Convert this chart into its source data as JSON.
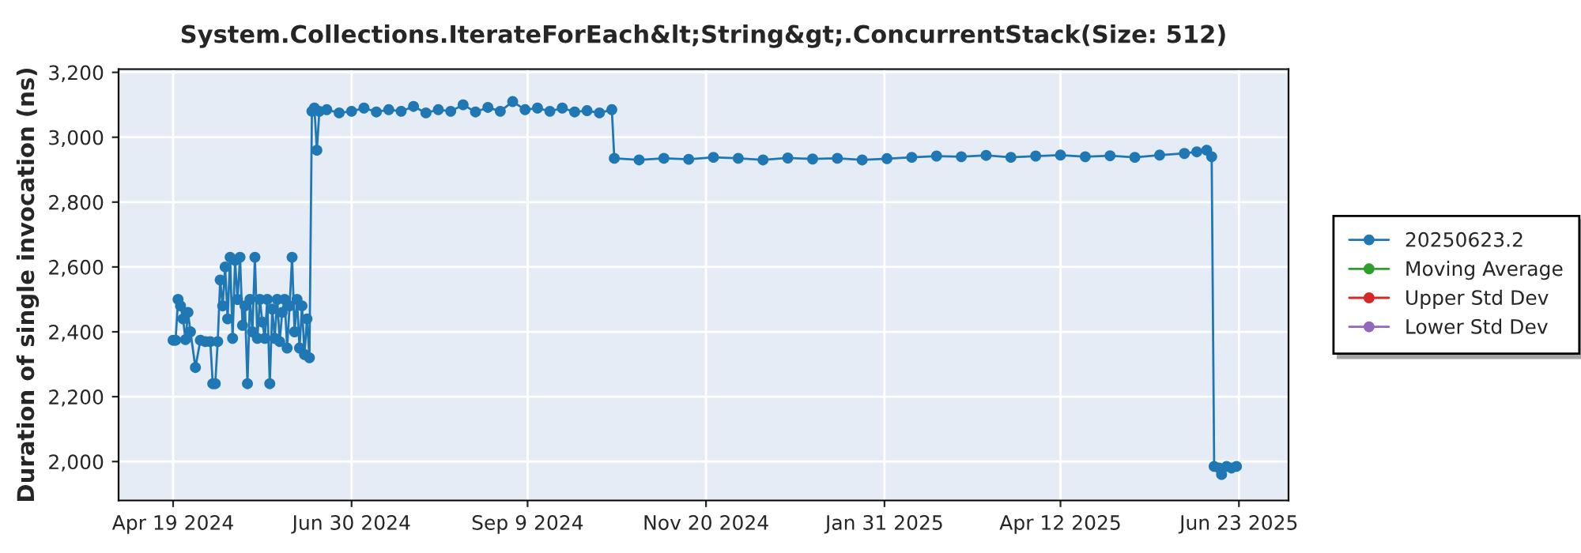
{
  "chart_data": {
    "type": "line",
    "title": "System.Collections.IterateForEach&lt;String&gt;.ConcurrentStack(Size: 512)",
    "ylabel": "Duration of single invocation (ns)",
    "xlim": [
      "2024-03-28",
      "2025-07-13"
    ],
    "xticks": [
      {
        "value": "2024-04-19",
        "label": "Apr 19 2024"
      },
      {
        "value": "2024-06-30",
        "label": "Jun 30 2024"
      },
      {
        "value": "2024-09-09",
        "label": "Sep 9 2024"
      },
      {
        "value": "2024-11-20",
        "label": "Nov 20 2024"
      },
      {
        "value": "2025-01-31",
        "label": "Jan 31 2025"
      },
      {
        "value": "2025-04-12",
        "label": "Apr 12 2025"
      },
      {
        "value": "2025-06-23",
        "label": "Jun 23 2025"
      }
    ],
    "ylim": [
      1880,
      3210
    ],
    "yticks": [
      {
        "value": 2000,
        "label": "2,000"
      },
      {
        "value": 2200,
        "label": "2,200"
      },
      {
        "value": 2400,
        "label": "2,400"
      },
      {
        "value": 2600,
        "label": "2,600"
      },
      {
        "value": 2800,
        "label": "2,800"
      },
      {
        "value": 3000,
        "label": "3,000"
      },
      {
        "value": 3200,
        "label": "3,200"
      }
    ],
    "grid": true,
    "legend": "right",
    "marker": "circle",
    "line_style": "solid",
    "series": [
      {
        "name": "20250623.2",
        "color": "#1f77b4",
        "x": [
          "2024-04-19",
          "2024-04-20",
          "2024-04-21",
          "2024-04-22",
          "2024-04-23",
          "2024-04-24",
          "2024-04-25",
          "2024-04-26",
          "2024-04-28",
          "2024-04-30",
          "2024-05-02",
          "2024-05-04",
          "2024-05-05",
          "2024-05-06",
          "2024-05-07",
          "2024-05-08",
          "2024-05-09",
          "2024-05-10",
          "2024-05-11",
          "2024-05-12",
          "2024-05-13",
          "2024-05-14",
          "2024-05-15",
          "2024-05-16",
          "2024-05-17",
          "2024-05-18",
          "2024-05-19",
          "2024-05-20",
          "2024-05-21",
          "2024-05-22",
          "2024-05-23",
          "2024-05-24",
          "2024-05-25",
          "2024-05-26",
          "2024-05-27",
          "2024-05-28",
          "2024-05-29",
          "2024-05-30",
          "2024-05-31",
          "2024-06-01",
          "2024-06-02",
          "2024-06-03",
          "2024-06-04",
          "2024-06-05",
          "2024-06-06",
          "2024-06-07",
          "2024-06-08",
          "2024-06-09",
          "2024-06-10",
          "2024-06-11",
          "2024-06-12",
          "2024-06-13",
          "2024-06-14",
          "2024-06-15",
          "2024-06-16",
          "2024-06-17",
          "2024-06-20",
          "2024-06-25",
          "2024-06-30",
          "2024-07-05",
          "2024-07-10",
          "2024-07-15",
          "2024-07-20",
          "2024-07-25",
          "2024-07-30",
          "2024-08-04",
          "2024-08-09",
          "2024-08-14",
          "2024-08-19",
          "2024-08-24",
          "2024-08-29",
          "2024-09-03",
          "2024-09-08",
          "2024-09-13",
          "2024-09-18",
          "2024-09-23",
          "2024-09-28",
          "2024-10-03",
          "2024-10-08",
          "2024-10-13",
          "2024-10-14",
          "2024-10-24",
          "2024-11-03",
          "2024-11-13",
          "2024-11-23",
          "2024-12-03",
          "2024-12-13",
          "2024-12-23",
          "2025-01-02",
          "2025-01-12",
          "2025-01-22",
          "2025-02-01",
          "2025-02-11",
          "2025-02-21",
          "2025-03-03",
          "2025-03-13",
          "2025-03-23",
          "2025-04-02",
          "2025-04-12",
          "2025-04-22",
          "2025-05-02",
          "2025-05-12",
          "2025-05-22",
          "2025-06-01",
          "2025-06-06",
          "2025-06-10",
          "2025-06-12",
          "2025-06-13",
          "2025-06-15",
          "2025-06-16",
          "2025-06-18",
          "2025-06-20",
          "2025-06-22"
        ],
        "values": [
          2374,
          2374,
          2500,
          2480,
          2440,
          2376,
          2460,
          2400,
          2290,
          2374,
          2370,
          2370,
          2240,
          2240,
          2370,
          2560,
          2480,
          2600,
          2440,
          2630,
          2380,
          2620,
          2500,
          2630,
          2420,
          2480,
          2240,
          2500,
          2400,
          2630,
          2380,
          2500,
          2430,
          2380,
          2500,
          2240,
          2470,
          2380,
          2500,
          2370,
          2460,
          2500,
          2350,
          2480,
          2630,
          2400,
          2500,
          2350,
          2480,
          2330,
          2440,
          2320,
          3080,
          3090,
          2960,
          3080,
          3085,
          3075,
          3080,
          3090,
          3078,
          3085,
          3080,
          3095,
          3075,
          3085,
          3080,
          3100,
          3078,
          3092,
          3080,
          3110,
          3085,
          3090,
          3080,
          3090,
          3078,
          3082,
          3075,
          3085,
          2935,
          2930,
          2935,
          2932,
          2938,
          2935,
          2930,
          2936,
          2933,
          2935,
          2930,
          2934,
          2938,
          2942,
          2940,
          2944,
          2938,
          2942,
          2945,
          2940,
          2943,
          2938,
          2945,
          2950,
          2955,
          2960,
          2940,
          1985,
          1980,
          1960,
          1985,
          1980,
          1985
        ]
      },
      {
        "name": "Moving Average",
        "color": "#2ca02c"
      },
      {
        "name": "Upper Std Dev",
        "color": "#d62728"
      },
      {
        "name": "Lower Std Dev",
        "color": "#9467bd"
      }
    ]
  }
}
